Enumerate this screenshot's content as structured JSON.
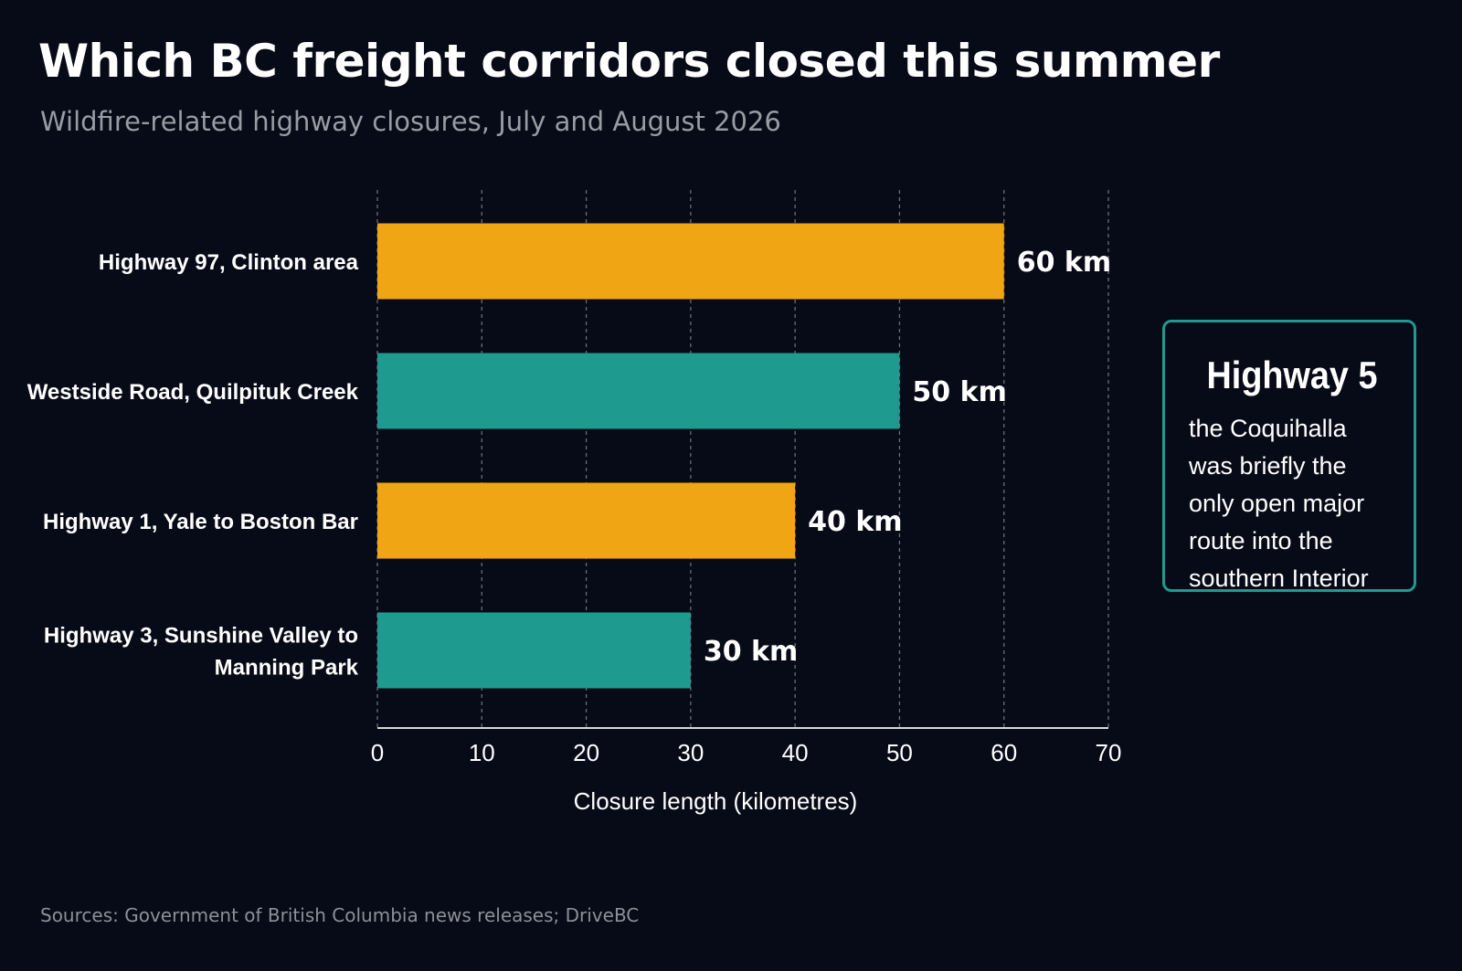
{
  "header": {
    "title": "Which BC freight corridors closed this summer",
    "subtitle": "Wildfire-related highway closures, July and August 2026"
  },
  "callout": {
    "title": "Highway 5",
    "body": "the Coquihalla was briefly the only open major route into the southern Interior"
  },
  "footer": {
    "source": "Sources: Government of British Columbia news releases; DriveBC"
  },
  "colors": {
    "amber": "#f0a514",
    "teal": "#1e9a8f",
    "background": "#070a17"
  },
  "chart_data": {
    "type": "bar",
    "orientation": "horizontal",
    "categories": [
      "Highway 97, Clinton area",
      "Westside Road, Quilpituk Creek",
      "Highway 1, Yale to Boston Bar",
      "Highway 3, Sunshine Valley to Manning Park"
    ],
    "category_lines": [
      [
        "Highway 97, Clinton area"
      ],
      [
        "Westside Road, Quilpituk Creek"
      ],
      [
        "Highway 1, Yale to Boston Bar"
      ],
      [
        "Highway 3, Sunshine Valley to",
        "Manning Park"
      ]
    ],
    "values": [
      60,
      50,
      40,
      30
    ],
    "value_labels": [
      "60 km",
      "50 km",
      "40 km",
      "30 km"
    ],
    "bar_colors": [
      "#f0a514",
      "#1e9a8f",
      "#f0a514",
      "#1e9a8f"
    ],
    "xlabel": "Closure length (kilometres)",
    "ylabel": "",
    "xlim": [
      0,
      70
    ],
    "xticks": [
      0,
      10,
      20,
      30,
      40,
      50,
      60,
      70
    ],
    "grid": "vertical dashed",
    "legend": "none"
  }
}
